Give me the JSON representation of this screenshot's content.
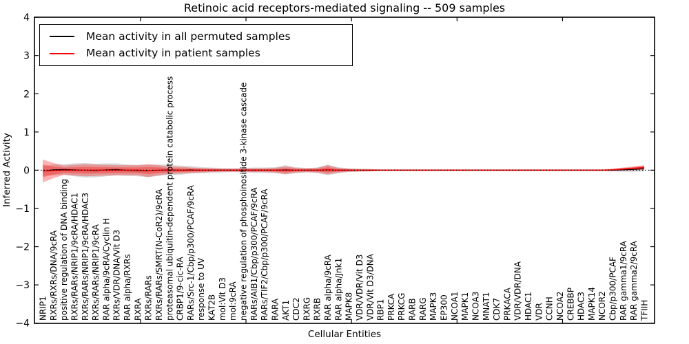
{
  "chart_data": {
    "type": "line",
    "title": "Retinoic acid receptors-mediated signaling -- 509 samples",
    "xlabel": "Cellular Entities",
    "ylabel": "Inferred Activity",
    "ylim": [
      -4,
      4
    ],
    "yticks": [
      -4,
      -3,
      -2,
      -1,
      0,
      1,
      2,
      3,
      4
    ],
    "xticks": [
      10,
      20,
      30,
      40,
      50
    ],
    "grid": false,
    "zero_line": "black dotted at y=0",
    "legend_position": "upper left",
    "categories": [
      "NRIP1",
      "RXRs/RXRs/DNA/9cRA",
      "positive regulation of DNA binding",
      "RXRs/RARs/NRIP1/9cRA/HDAC1",
      "RXRs/RARs/NRIP1/9cRA/HDAC3",
      "RXRs/RARs/NRIP1/9cRA",
      "RAR alpha/9cRA/Cyclin H",
      "RXRs/VDR/DNA/Vit D3",
      "RAR alpha/RXRs",
      "RXRA",
      "RXRs/RARs",
      "RXRs/RARs/SMRT(N-CoR2)/9cRA",
      "proteasomal ubiquitin-dependent protein catabolic process",
      "CRBP1/9-cic-RA",
      "RARs/Src-1/Cbp/p300/PCAF/9cRA",
      "response to UV",
      "KAT2B",
      "mol:Vit D3",
      "mol:9cRA",
      "negative regulation of phosphoinositide 3-kinase cascade",
      "RARs/AIB1/Cbp/p300/PCAF/9cRA",
      "RARs/TIF2/Cbp/p300/PCAF/9cRA",
      "RARA",
      "AKT1",
      "CDC2",
      "RXRG",
      "RXRB",
      "RAR alpha/9cRA",
      "RAR alpha/Jnk1",
      "MAPK8",
      "VDR/VDR/Vit D3",
      "VDR/Vit D3/DNA",
      "RBP1",
      "PRKCA",
      "PRKCG",
      "RARB",
      "RARG",
      "MAPK3",
      "EP300",
      "NCOA1",
      "MAPK1",
      "NCOA3",
      "MNAT1",
      "CDK7",
      "PRKACA",
      "VDR/VDR/DNA",
      "HDAC1",
      "VDR",
      "CCNH",
      "NCOA2",
      "CREBBP",
      "HDAC3",
      "MAPK14",
      "NCOR2",
      "Cbp/p300/PCAF",
      "RAR gamma1/9cRA",
      "RAR gamma2/9cRA",
      "TFIIH"
    ],
    "series": [
      {
        "name": "Mean activity in all permuted samples",
        "color": "#000000",
        "band_color": "#999999",
        "values": [
          -0.02,
          0.01,
          0.02,
          0.01,
          0.0,
          -0.01,
          0.01,
          0.02,
          0.0,
          -0.01,
          -0.02,
          0.0,
          0.01,
          0.0,
          0.01,
          0.0,
          0.0,
          0.0,
          0.0,
          0.0,
          0.0,
          0.0,
          0.0,
          0.01,
          0.0,
          0.0,
          0.0,
          0.01,
          0.0,
          0.0,
          0.0,
          0.0,
          0.0,
          0.0,
          0.0,
          0.0,
          0.0,
          0.0,
          0.0,
          0.0,
          0.0,
          0.0,
          0.0,
          0.0,
          0.0,
          0.0,
          0.0,
          0.0,
          0.0,
          0.0,
          0.0,
          0.0,
          0.0,
          0.0,
          0.0,
          0.01,
          0.02,
          0.04
        ],
        "band": [
          0.12,
          0.14,
          0.14,
          0.17,
          0.19,
          0.18,
          0.17,
          0.16,
          0.15,
          0.15,
          0.16,
          0.15,
          0.13,
          0.12,
          0.1,
          0.08,
          0.07,
          0.06,
          0.05,
          0.06,
          0.07,
          0.07,
          0.08,
          0.12,
          0.08,
          0.06,
          0.07,
          0.14,
          0.08,
          0.05,
          0.04,
          0.03,
          0.02,
          0.02,
          0.02,
          0.02,
          0.02,
          0.02,
          0.02,
          0.02,
          0.02,
          0.02,
          0.02,
          0.02,
          0.02,
          0.02,
          0.02,
          0.02,
          0.02,
          0.02,
          0.02,
          0.02,
          0.02,
          0.02,
          0.03,
          0.05,
          0.06,
          0.07
        ]
      },
      {
        "name": "Mean activity in patient samples",
        "color": "#ff0000",
        "band_color": "#ff0000",
        "values": [
          -0.02,
          -0.01,
          0.0,
          0.0,
          0.0,
          0.0,
          0.0,
          0.0,
          0.0,
          0.0,
          -0.01,
          0.0,
          0.0,
          0.0,
          0.0,
          0.0,
          0.0,
          0.0,
          0.0,
          0.0,
          0.0,
          0.0,
          0.0,
          0.0,
          0.0,
          0.0,
          0.0,
          0.01,
          0.0,
          0.0,
          0.0,
          0.0,
          0.0,
          0.0,
          0.0,
          0.0,
          0.0,
          0.0,
          0.0,
          0.0,
          0.0,
          0.0,
          0.0,
          0.0,
          0.0,
          0.0,
          0.0,
          0.0,
          0.0,
          0.0,
          0.0,
          0.0,
          0.0,
          0.0,
          0.01,
          0.03,
          0.05,
          0.07
        ],
        "band": [
          0.3,
          0.2,
          0.12,
          0.14,
          0.16,
          0.15,
          0.14,
          0.13,
          0.13,
          0.13,
          0.17,
          0.13,
          0.1,
          0.09,
          0.07,
          0.06,
          0.05,
          0.04,
          0.04,
          0.04,
          0.05,
          0.05,
          0.06,
          0.1,
          0.06,
          0.05,
          0.06,
          0.12,
          0.06,
          0.04,
          0.03,
          0.03,
          0.02,
          0.02,
          0.02,
          0.02,
          0.02,
          0.02,
          0.02,
          0.02,
          0.02,
          0.02,
          0.02,
          0.02,
          0.02,
          0.02,
          0.02,
          0.02,
          0.02,
          0.02,
          0.02,
          0.02,
          0.02,
          0.02,
          0.03,
          0.04,
          0.05,
          0.06
        ]
      }
    ]
  }
}
